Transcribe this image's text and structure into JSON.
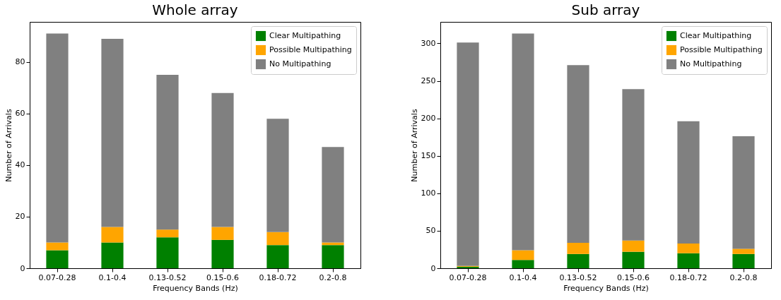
{
  "chart_data": [
    {
      "type": "bar",
      "title": "Whole array",
      "xlabel": "Frequency Bands (Hz)",
      "ylabel": "Number of Arrivals",
      "categories": [
        "0.07-0.28",
        "0.1-0.4",
        "0.13-0.52",
        "0.15-0.6",
        "0.18-0.72",
        "0.2-0.8"
      ],
      "stacked": true,
      "legend": "top right",
      "ylim": [
        0,
        95.55
      ],
      "yticks": [
        0,
        20,
        40,
        60,
        80
      ],
      "series": [
        {
          "name": "Clear Multipathing",
          "color": "#008000",
          "values": [
            7,
            10,
            12,
            11,
            9,
            9
          ]
        },
        {
          "name": "Possible Multipathing",
          "color": "#ffa500",
          "values": [
            3,
            6,
            3,
            5,
            5,
            1
          ]
        },
        {
          "name": "No Multipathing",
          "color": "#808080",
          "values": [
            81,
            73,
            60,
            52,
            44,
            37
          ]
        }
      ]
    },
    {
      "type": "bar",
      "title": "Sub array",
      "xlabel": "Frequency Bands (Hz)",
      "ylabel": "Number of Arrivals",
      "categories": [
        "0.07-0.28",
        "0.1-0.4",
        "0.13-0.52",
        "0.15-0.6",
        "0.18-0.72",
        "0.2-0.8"
      ],
      "stacked": true,
      "legend": "top right",
      "ylim": [
        0,
        328.65
      ],
      "yticks": [
        0,
        50,
        100,
        150,
        200,
        250,
        300
      ],
      "series": [
        {
          "name": "Clear Multipathing",
          "color": "#008000",
          "values": [
            2,
            11,
            19,
            22,
            20,
            19
          ]
        },
        {
          "name": "Possible Multipathing",
          "color": "#ffa500",
          "values": [
            1,
            13,
            15,
            15,
            13,
            7
          ]
        },
        {
          "name": "No Multipathing",
          "color": "#808080",
          "values": [
            298,
            289,
            237,
            202,
            163,
            150
          ]
        }
      ]
    }
  ]
}
